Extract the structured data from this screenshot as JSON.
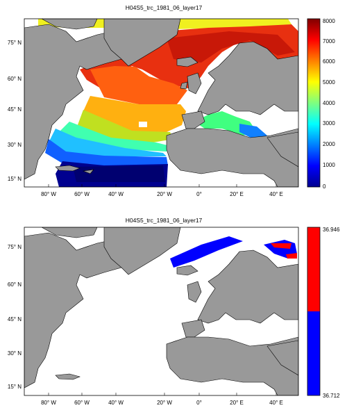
{
  "panels": [
    {
      "title": "H04S5_trc_1981_06_layer17",
      "x_ticks": [
        "80° W",
        "60° W",
        "40° W",
        "20° W",
        "0°",
        "20° E",
        "40° E"
      ],
      "y_ticks": [
        "75° N",
        "60° N",
        "45° N",
        "30° N",
        "15° N"
      ],
      "colorbar": {
        "ticks": [
          "8000",
          "7000",
          "6000",
          "5000",
          "4000",
          "3000",
          "2000",
          "1000",
          "0"
        ],
        "type": "jet",
        "min": 0,
        "max": 8000
      }
    },
    {
      "title": "H04S5_trc_1981_06_layer17",
      "x_ticks": [
        "80° W",
        "60° W",
        "40° W",
        "20° W",
        "0°",
        "20° E",
        "40° E"
      ],
      "y_ticks": [
        "75° N",
        "60° N",
        "45° N",
        "30° N",
        "15° N"
      ],
      "colorbar": {
        "ticks": [
          "36.946",
          "36.712"
        ],
        "type": "two-color",
        "colors": [
          "#ff0000",
          "#0000ff"
        ]
      }
    }
  ],
  "colors": {
    "land": "#999999",
    "ocean_bg": "#ffffff",
    "frame": "#000000"
  }
}
